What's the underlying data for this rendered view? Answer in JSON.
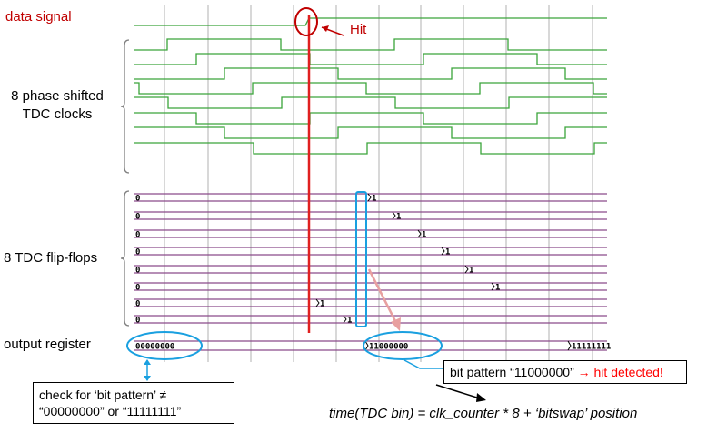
{
  "labels": {
    "data_signal": "data signal",
    "hit": "Hit",
    "tdc_clocks_line1": "8 phase shifted",
    "tdc_clocks_line2": "TDC clocks",
    "flip_flops": "8 TDC flip-flops",
    "output_register": "output register"
  },
  "flipflop_rows": [
    {
      "initial": "0",
      "transition": "1"
    },
    {
      "initial": "0",
      "transition": "1"
    },
    {
      "initial": "0",
      "transition": "1"
    },
    {
      "initial": "0",
      "transition": "1"
    },
    {
      "initial": "0",
      "transition": "1"
    },
    {
      "initial": "0",
      "transition": "1"
    },
    {
      "initial": "0",
      "transition": "1"
    },
    {
      "initial": "0",
      "transition": "1"
    }
  ],
  "output_register_values": [
    "00000000",
    "11000000",
    "11111111"
  ],
  "callout_bit_pattern": {
    "prefix": "bit pattern “11000000” ",
    "arrow": "→",
    "suffix": " hit detected!"
  },
  "callout_check": {
    "line1": "check for ‘bit pattern’ ≠",
    "line2": "“00000000” or “11111111”"
  },
  "formula": "time(TDC bin) = clk_counter * 8 + ‘bitswap’ position",
  "colors": {
    "clock_green": "#3aa43a",
    "flipflop_purple": "#8a4a8a",
    "hit_red": "#e02020",
    "callout_blue": "#1aa0e0",
    "grid_gray": "#b0b0b0",
    "label_red": "#c00000"
  }
}
